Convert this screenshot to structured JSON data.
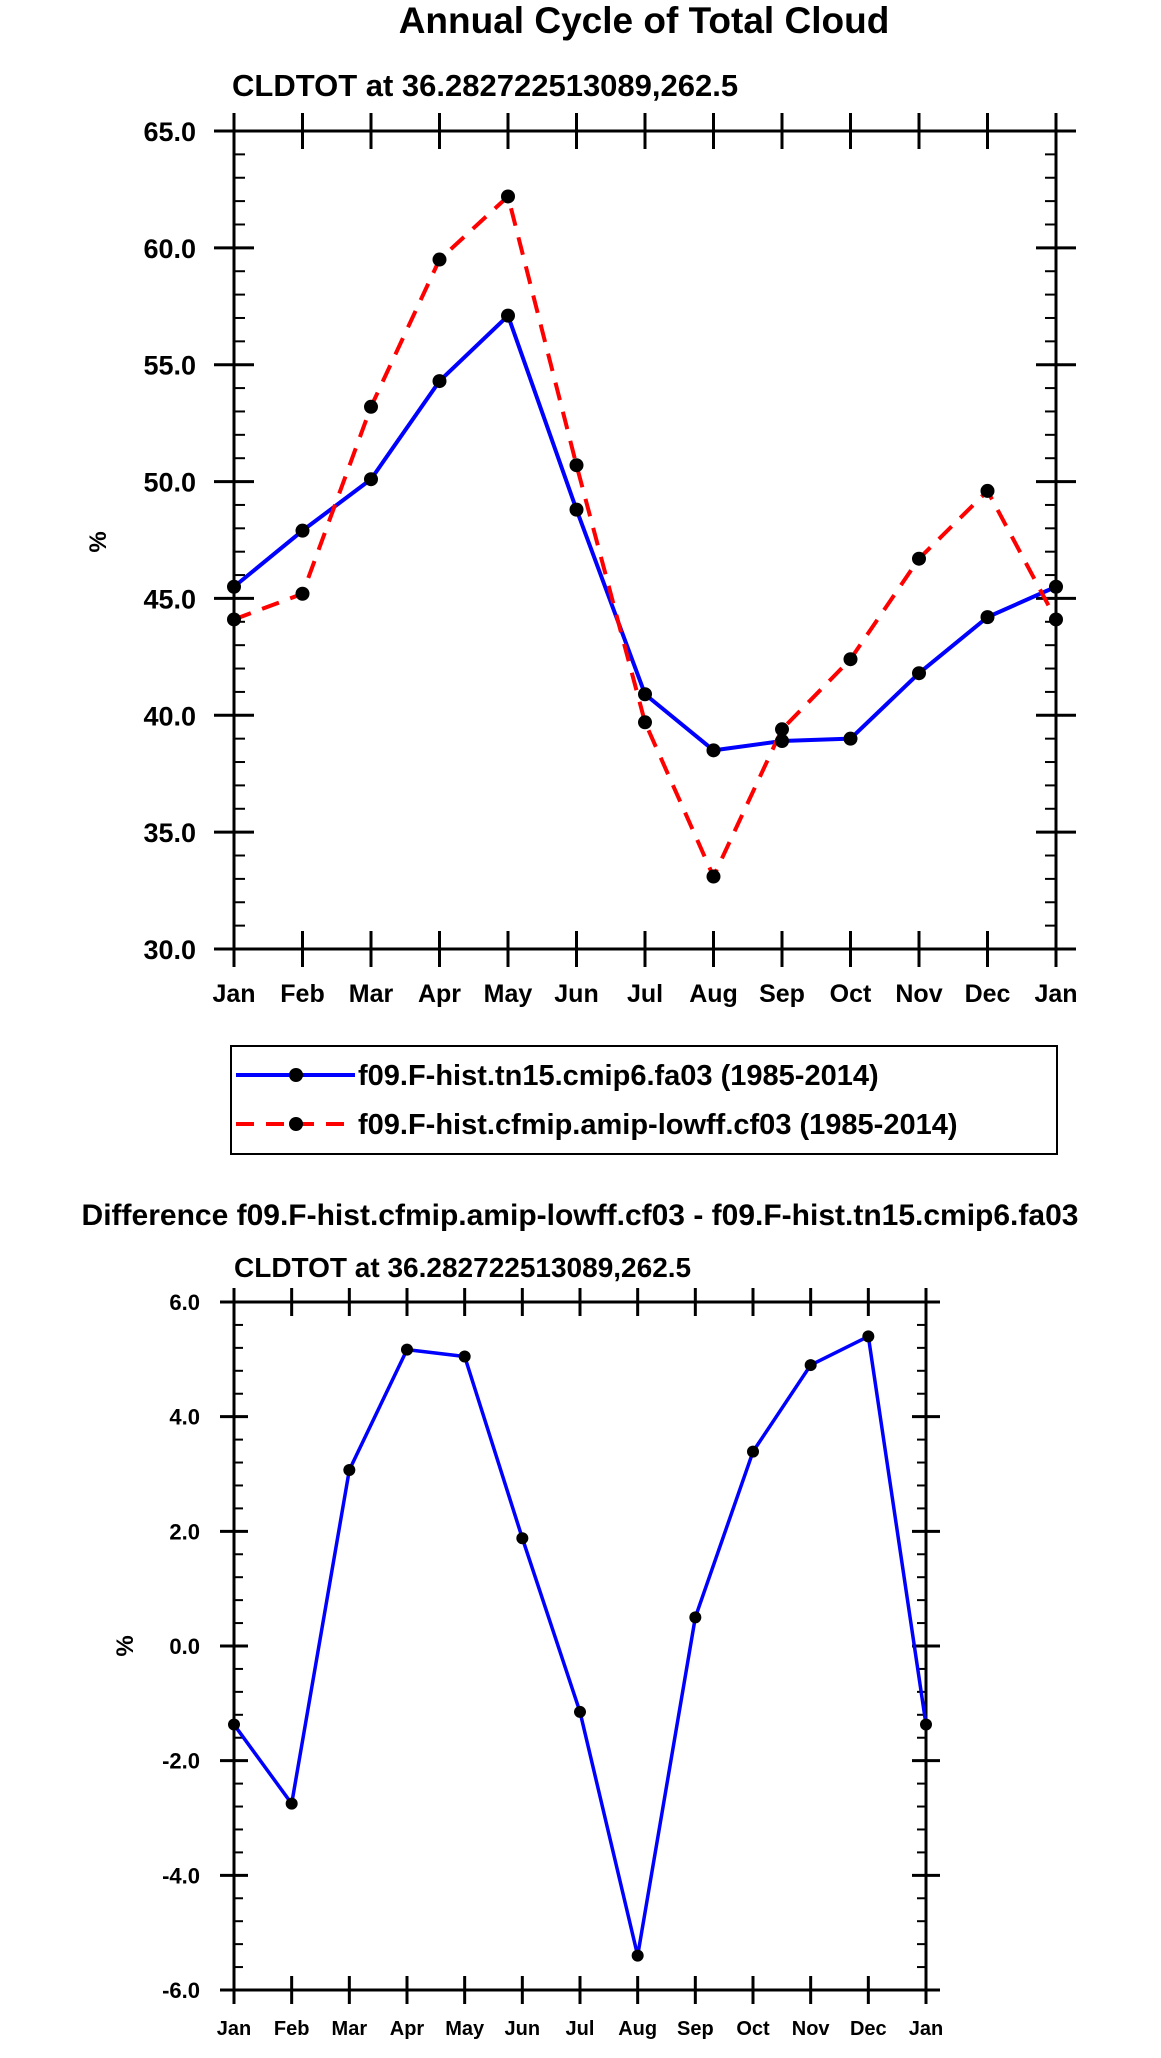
{
  "chart_data": [
    {
      "type": "line",
      "title": "Annual Cycle of Total Cloud",
      "subtitle": "CLDTOT at 36.282722513089,262.5",
      "xlabel": "",
      "ylabel": "%",
      "categories": [
        "Jan",
        "Feb",
        "Mar",
        "Apr",
        "May",
        "Jun",
        "Jul",
        "Aug",
        "Sep",
        "Oct",
        "Nov",
        "Dec",
        "Jan"
      ],
      "ylim": [
        30.0,
        65.0
      ],
      "yticks": [
        "30.0",
        "35.0",
        "40.0",
        "45.0",
        "50.0",
        "55.0",
        "60.0",
        "65.0"
      ],
      "legend_position": "bottom",
      "series": [
        {
          "name": "f09.F-hist.tn15.cmip6.fa03 (1985-2014)",
          "color": "#0000ff",
          "dash": "solid",
          "values": [
            45.5,
            47.9,
            50.1,
            54.3,
            57.1,
            48.8,
            40.9,
            38.5,
            38.9,
            39.0,
            41.8,
            44.2,
            45.5
          ]
        },
        {
          "name": "f09.F-hist.cfmip.amip-lowff.cf03 (1985-2014)",
          "color": "#ff0000",
          "dash": "dashed",
          "values": [
            44.1,
            45.2,
            53.2,
            59.5,
            62.2,
            50.7,
            39.7,
            33.1,
            39.4,
            42.4,
            46.7,
            49.6,
            44.1
          ]
        }
      ]
    },
    {
      "type": "line",
      "title": "Difference f09.F-hist.cfmip.amip-lowff.cf03 - f09.F-hist.tn15.cmip6.fa03",
      "subtitle": "CLDTOT at 36.282722513089,262.5",
      "xlabel": "",
      "ylabel": "%",
      "categories": [
        "Jan",
        "Feb",
        "Mar",
        "Apr",
        "May",
        "Jun",
        "Jul",
        "Aug",
        "Sep",
        "Oct",
        "Nov",
        "Dec",
        "Jan"
      ],
      "ylim": [
        -6.0,
        6.0
      ],
      "yticks": [
        "-6.0",
        "-4.0",
        "-2.0",
        "0.0",
        "2.0",
        "4.0",
        "6.0"
      ],
      "series": [
        {
          "name": "difference",
          "color": "#0000ff",
          "dash": "solid",
          "values": [
            -1.37,
            -2.75,
            3.07,
            5.17,
            5.05,
            1.88,
            -1.15,
            -5.4,
            0.5,
            3.39,
            4.9,
            5.4,
            -1.37
          ]
        }
      ]
    }
  ]
}
